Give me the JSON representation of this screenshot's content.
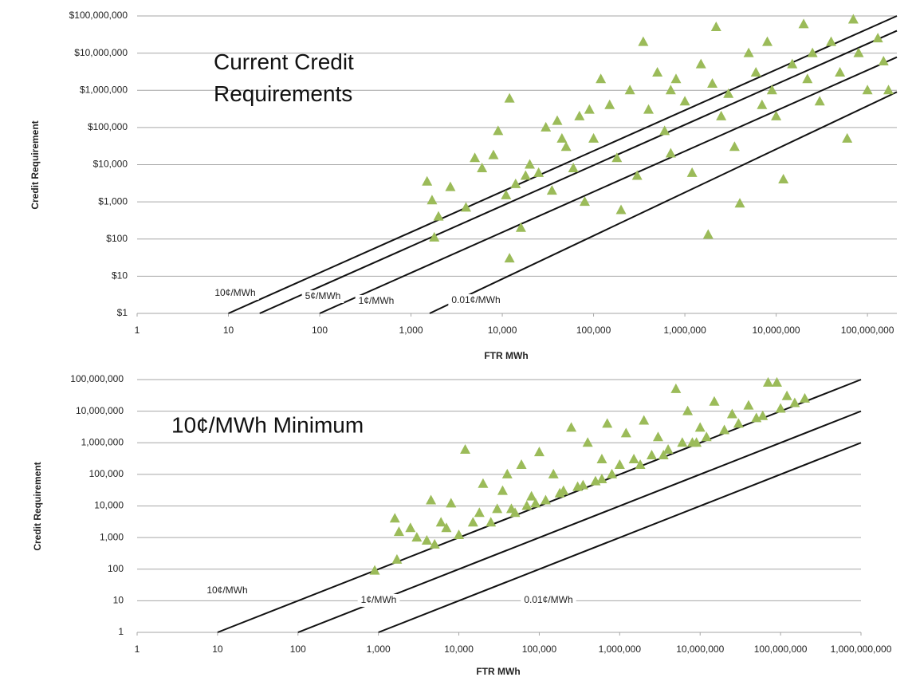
{
  "chart_data": [
    {
      "type": "scatter",
      "title": "Current Credit Requirements",
      "x_label": "FTR MWh",
      "y_label": "Credit Requirement",
      "log_x": true,
      "log_y": true,
      "grid": true,
      "xlim": [
        1,
        210000000
      ],
      "ylim": [
        1,
        100000000
      ],
      "xticks": [
        1,
        10,
        100,
        {
          "value": 1000,
          "label": "1,000"
        },
        {
          "value": 10000,
          "label": "10,000"
        },
        {
          "value": 100000,
          "label": "100,000"
        },
        {
          "value": 1000000,
          "label": "1,000,000"
        },
        {
          "value": 10000000,
          "label": "10,000,000"
        },
        {
          "value": 100000000,
          "label": "100,000,000"
        }
      ],
      "yticks": [
        {
          "value": 1,
          "label": "$1"
        },
        {
          "value": 10,
          "label": "$10"
        },
        {
          "value": 100,
          "label": "$100"
        },
        {
          "value": 1000,
          "label": "$1,000"
        },
        {
          "value": 10000,
          "label": "$10,000"
        },
        {
          "value": 100000,
          "label": "$100,000"
        },
        {
          "value": 1000000,
          "label": "$1,000,000"
        },
        {
          "value": 10000000,
          "label": "$10,000,000"
        },
        {
          "value": 100000000,
          "label": "$100,000,000"
        }
      ],
      "series": [
        {
          "color": "#9bbb59",
          "x": [
            1500,
            1700,
            1800,
            2700,
            5000,
            6000,
            8000,
            12000,
            12000,
            11000,
            14000,
            16000,
            20000,
            25000,
            30000,
            35000,
            40000,
            50000,
            60000,
            70000,
            80000,
            100000,
            120000,
            150000,
            180000,
            200000,
            250000,
            300000,
            400000,
            500000,
            600000,
            700000,
            800000,
            1000000,
            1200000,
            1500000,
            1800000,
            2000000,
            2500000,
            3000000,
            3500000,
            4000000,
            5000000,
            6000000,
            7000000,
            8000000,
            9000000,
            10000000,
            12000000,
            15000000,
            20000000,
            22000000,
            25000000,
            30000000,
            40000000,
            50000000,
            60000000,
            70000000,
            80000000,
            100000000,
            130000000,
            150000000,
            170000000,
            2000,
            4000,
            9000,
            18000,
            45000,
            90000,
            350000,
            2200000,
            700000
          ],
          "values": [
            3500,
            1100,
            110,
            2500,
            15000,
            8000,
            18000,
            600000,
            30,
            1500,
            3000,
            200,
            10000,
            6000,
            100000,
            2000,
            150000,
            30000,
            8000,
            200000,
            1000,
            50000,
            2000000,
            400000,
            15000,
            600,
            1000000,
            5000,
            300000,
            3000000,
            80000,
            20000,
            2000000,
            500000,
            6000,
            5000000,
            130,
            1500000,
            200000,
            800000,
            30000,
            900,
            10000000,
            3000000,
            400000,
            20000000,
            1000000,
            200000,
            4000,
            5000000,
            60000000,
            2000000,
            10000000,
            500000,
            20000000,
            3000000,
            50000,
            80000000,
            10000000,
            1000000,
            25000000,
            6000000,
            1000000,
            400,
            700,
            80000,
            5000,
            50000,
            300000,
            20000000,
            50000000,
            1000000
          ]
        }
      ],
      "lines": [
        {
          "label": "10¢/MWh",
          "x": [
            10,
            210000000
          ],
          "y": [
            1,
            100000000
          ]
        },
        {
          "label": "5¢/MWh",
          "x": [
            22,
            210000000
          ],
          "y": [
            1,
            40000000
          ]
        },
        {
          "label": "1¢/MWh",
          "x": [
            100,
            210000000
          ],
          "y": [
            1,
            7800000
          ]
        },
        {
          "label": "0.01¢/MWh",
          "x": [
            1600,
            210000000
          ],
          "y": [
            1,
            900000
          ]
        }
      ]
    },
    {
      "type": "scatter",
      "title": "10¢/MWh Minimum",
      "x_label": "FTR MWh",
      "y_label": "Credit Requirement",
      "log_x": true,
      "log_y": true,
      "grid": true,
      "xlim": [
        1,
        1000000000
      ],
      "ylim": [
        1,
        100000000
      ],
      "xticks": [
        1,
        10,
        100,
        {
          "value": 1000,
          "label": "1,000"
        },
        {
          "value": 10000,
          "label": "10,000"
        },
        {
          "value": 100000,
          "label": "100,000"
        },
        {
          "value": 1000000,
          "label": "1,000,000"
        },
        {
          "value": 10000000,
          "label": "10,000,000"
        },
        {
          "value": 100000000,
          "label": "100,000,000"
        },
        {
          "value": 1000000000,
          "label": "1,000,000,000"
        }
      ],
      "yticks": [
        1,
        10,
        100,
        {
          "value": 1000,
          "label": "1,000"
        },
        {
          "value": 10000,
          "label": "10,000"
        },
        {
          "value": 100000,
          "label": "100,000"
        },
        {
          "value": 1000000,
          "label": "1,000,000"
        },
        {
          "value": 10000000,
          "label": "10,000,000"
        },
        {
          "value": 100000000,
          "label": "100,000,000"
        }
      ],
      "series": [
        {
          "color": "#9bbb59",
          "x": [
            900,
            1600,
            1700,
            1800,
            2500,
            4000,
            4500,
            5000,
            6000,
            8000,
            10000,
            12000,
            15000,
            20000,
            25000,
            30000,
            35000,
            40000,
            50000,
            60000,
            70000,
            80000,
            100000,
            120000,
            150000,
            200000,
            250000,
            300000,
            400000,
            500000,
            600000,
            700000,
            800000,
            1000000,
            1200000,
            1500000,
            2000000,
            2500000,
            3000000,
            4000000,
            5000000,
            6000000,
            7000000,
            8000000,
            10000000,
            12000000,
            15000000,
            20000000,
            25000000,
            30000000,
            40000000,
            50000000,
            70000000,
            90000000,
            100000000,
            120000000,
            150000000,
            200000000,
            3000,
            7000,
            18000,
            45000,
            90000,
            180000,
            350000,
            600000,
            1800000,
            3500000,
            9000000,
            60000000
          ],
          "values": [
            90,
            4000,
            200,
            1500,
            2000,
            800,
            15000,
            600,
            3000,
            12000,
            1200,
            600000,
            3000,
            50000,
            3000,
            8000,
            30000,
            100000,
            6000,
            200000,
            10000,
            20000,
            500000,
            15000,
            100000,
            30000,
            3000000,
            40000,
            1000000,
            60000,
            300000,
            4000000,
            100000,
            200000,
            2000000,
            300000,
            5000000,
            400000,
            1500000,
            600000,
            50000000,
            1000000,
            10000000,
            1000000,
            3000000,
            1500000,
            20000000,
            2500000,
            8000000,
            4000000,
            15000000,
            6000000,
            80000000,
            80000000,
            12000000,
            30000000,
            18000000,
            25000000,
            1000,
            2000,
            6000,
            8000,
            12000,
            25000,
            45000,
            70000,
            200000,
            400000,
            1000000,
            7000000
          ]
        }
      ],
      "lines": [
        {
          "label": "10¢/MWh",
          "x": [
            10,
            1000000000
          ],
          "y": [
            1,
            100000000
          ]
        },
        {
          "label": "1¢/MWh",
          "x": [
            100,
            1000000000
          ],
          "y": [
            1,
            10000000
          ]
        },
        {
          "label": "0.01¢/MWh",
          "x": [
            1000,
            1000000000
          ],
          "y": [
            1,
            1000000
          ]
        }
      ]
    }
  ]
}
